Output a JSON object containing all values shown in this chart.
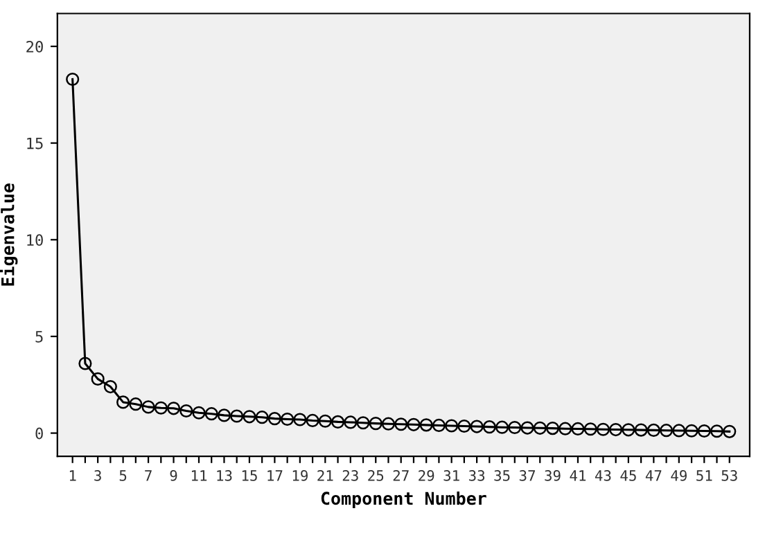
{
  "chart_data": {
    "type": "line",
    "xlabel": "Component Number",
    "ylabel": "Eigenvalue",
    "categories": [
      "1",
      null,
      "3",
      null,
      "5",
      null,
      "7",
      null,
      "9",
      null,
      "11",
      null,
      "13",
      null,
      "15",
      null,
      "17",
      null,
      "19",
      null,
      "21",
      null,
      "23",
      null,
      "25",
      null,
      "27",
      null,
      "29",
      null,
      "31",
      null,
      "33",
      null,
      "35",
      null,
      "37",
      null,
      "39",
      null,
      "41",
      null,
      "43",
      null,
      "45",
      null,
      "47",
      null,
      "49",
      null,
      "51",
      null,
      "53"
    ],
    "series": [
      {
        "color": "#000000",
        "values": [
          18.3,
          3.6,
          2.8,
          2.4,
          1.6,
          1.5,
          1.35,
          1.3,
          1.28,
          1.15,
          1.05,
          1.0,
          0.92,
          0.88,
          0.85,
          0.82,
          0.75,
          0.72,
          0.7,
          0.65,
          0.62,
          0.58,
          0.56,
          0.53,
          0.5,
          0.48,
          0.46,
          0.44,
          0.42,
          0.4,
          0.38,
          0.36,
          0.34,
          0.32,
          0.3,
          0.29,
          0.27,
          0.26,
          0.25,
          0.23,
          0.22,
          0.21,
          0.19,
          0.18,
          0.17,
          0.16,
          0.15,
          0.14,
          0.13,
          0.12,
          0.11,
          0.1,
          0.08
        ]
      }
    ],
    "ylim": [
      -1.2,
      21.7
    ],
    "yticks": [
      0,
      5,
      10,
      15,
      20
    ],
    "grid": false,
    "legend": false,
    "marker": "circle",
    "line_style": "solid"
  }
}
